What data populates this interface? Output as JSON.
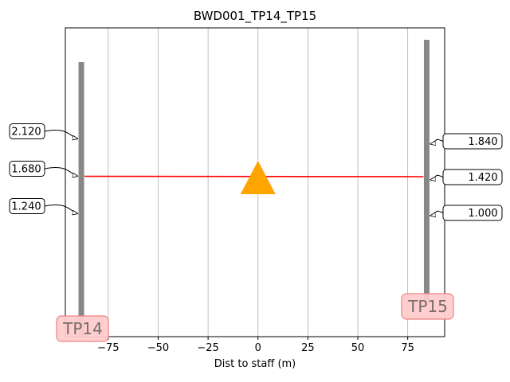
{
  "chart_data": {
    "type": "scatter",
    "title": "BWD001_TP14_TP15",
    "xlabel": "Dist to staff (m)",
    "ylabel": "",
    "xlim": [
      -96.5,
      93.5
    ],
    "xticks": [
      -75,
      -50,
      -25,
      0,
      25,
      50,
      75
    ],
    "x_tick_labels": [
      "−75",
      "−50",
      "−25",
      "0",
      "25",
      "50",
      "75"
    ],
    "grid": "x-major",
    "staffs": [
      {
        "name": "TP14",
        "dist_m": -88.5,
        "readings": [
          {
            "label": "2.120",
            "value": 2.12
          },
          {
            "label": "1.680",
            "value": 1.68
          },
          {
            "label": "1.240",
            "value": 1.24
          }
        ]
      },
      {
        "name": "TP15",
        "dist_m": 84.5,
        "readings": [
          {
            "label": "1.840",
            "value": 1.84
          },
          {
            "label": "1.420",
            "value": 1.42
          },
          {
            "label": "1.000",
            "value": 1.0
          }
        ]
      }
    ],
    "line_of_sight": {
      "from": "TP14",
      "to": "TP15",
      "color": "#ff0000"
    },
    "instrument": {
      "dist_m": 0,
      "symbol": "triangle",
      "color": "#ffa500"
    },
    "colors": {
      "staff": "#888888",
      "sight_line": "#ff0000",
      "instrument": "#ffa500",
      "staff_label_fill": "#ffcccc",
      "staff_label_border": "#f08080",
      "grid": "#b0b0b0"
    }
  }
}
